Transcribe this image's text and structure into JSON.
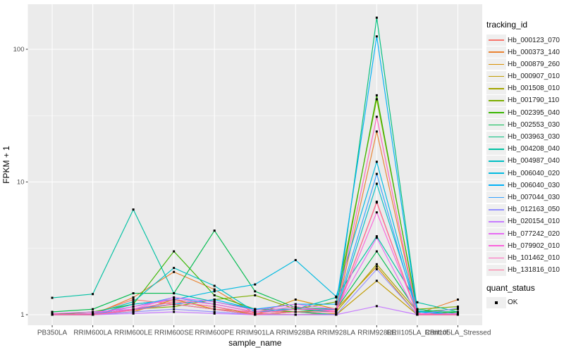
{
  "style": {
    "background": "#FFFFFF",
    "panel_bg": "#EBEBEB",
    "grid": "#FFFFFF",
    "tick": "#333333",
    "tick_label": "#4D4D4D",
    "axis_title": "#000000",
    "point": "#000000",
    "legend_key_bg": "#EFEFEF"
  },
  "chart_data": {
    "type": "line",
    "title": "",
    "xlabel": "sample_name",
    "ylabel": "FPKM + 1",
    "y_scale": "log10",
    "ylim": [
      0.83,
      215
    ],
    "y_ticks": [
      1,
      10,
      100
    ],
    "y_tick_labels": [
      "1",
      "10",
      "100"
    ],
    "y_minor": [
      3.1623,
      31.623
    ],
    "grid": true,
    "legend_position": "right",
    "point_marker": "filled-square",
    "categories": [
      "PB350LA",
      "RRIM600LA",
      "RRIM600LE",
      "RRIM600SE",
      "RRIM600PE",
      "RRIM901LA",
      "RRIM928BA",
      "RRIM928LA",
      "RRIM928LE",
      "RRII105LA_Control",
      "RRII105LA_Stressed"
    ],
    "series": [
      {
        "name": "Hb_000123_070",
        "color": "#F8766D",
        "values": [
          1.0,
          1.02,
          1.3,
          1.2,
          1.1,
          1.05,
          1.05,
          1.05,
          7.1,
          1.0,
          1.0
        ]
      },
      {
        "name": "Hb_000373_140",
        "color": "#EA8331",
        "values": [
          1.0,
          1.0,
          1.35,
          2.1,
          1.55,
          1.02,
          1.0,
          1.02,
          24,
          1.02,
          1.3
        ]
      },
      {
        "name": "Hb_000879_260",
        "color": "#D89000",
        "values": [
          1.0,
          1.0,
          1.05,
          1.3,
          1.1,
          1.0,
          1.3,
          1.1,
          2.3,
          1.0,
          1.05
        ]
      },
      {
        "name": "Hb_000907_010",
        "color": "#C09B00",
        "values": [
          1.02,
          1.0,
          1.1,
          1.25,
          1.15,
          1.0,
          1.05,
          1.0,
          1.8,
          1.0,
          1.0
        ]
      },
      {
        "name": "Hb_001508_010",
        "color": "#A3A500",
        "values": [
          1.0,
          1.0,
          1.2,
          1.3,
          1.2,
          1.05,
          1.1,
          1.05,
          2.4,
          1.05,
          1.0
        ]
      },
      {
        "name": "Hb_001790_110",
        "color": "#7CAE00",
        "values": [
          1.0,
          1.0,
          1.1,
          1.15,
          1.3,
          1.4,
          1.1,
          1.25,
          42,
          1.1,
          1.15
        ]
      },
      {
        "name": "Hb_002395_040",
        "color": "#39B600",
        "values": [
          1.0,
          1.05,
          1.2,
          3.0,
          1.4,
          1.1,
          1.05,
          1.1,
          45,
          1.05,
          1.1
        ]
      },
      {
        "name": "Hb_002553_030",
        "color": "#00BB4E",
        "values": [
          1.05,
          1.1,
          1.45,
          1.45,
          4.3,
          1.5,
          1.13,
          1.1,
          3.0,
          1.05,
          1.05
        ]
      },
      {
        "name": "Hb_003963_030",
        "color": "#00BF7D",
        "values": [
          1.0,
          1.0,
          1.1,
          1.2,
          1.1,
          1.0,
          1.05,
          1.0,
          173,
          1.1,
          1.02
        ]
      },
      {
        "name": "Hb_004208_040",
        "color": "#00C1A3",
        "values": [
          1.34,
          1.43,
          6.2,
          1.45,
          1.25,
          1.1,
          1.1,
          1.35,
          3.9,
          1.24,
          1.05
        ]
      },
      {
        "name": "Hb_004987_040",
        "color": "#00BFC4",
        "values": [
          1.0,
          1.02,
          1.25,
          2.25,
          1.65,
          1.05,
          1.1,
          1.05,
          9.7,
          1.07,
          1.0
        ]
      },
      {
        "name": "Hb_006040_020",
        "color": "#00BAE0",
        "values": [
          1.0,
          1.0,
          1.2,
          1.3,
          1.5,
          1.69,
          2.58,
          1.37,
          14.2,
          1.05,
          1.0
        ]
      },
      {
        "name": "Hb_006040_030",
        "color": "#00B0F6",
        "values": [
          1.0,
          1.0,
          1.1,
          1.2,
          1.3,
          1.1,
          1.2,
          1.2,
          125,
          1.05,
          1.0
        ]
      },
      {
        "name": "Hb_007044_030",
        "color": "#35A2FF",
        "values": [
          1.0,
          1.0,
          1.15,
          1.35,
          1.2,
          1.05,
          1.1,
          1.1,
          11.5,
          1.0,
          1.0
        ]
      },
      {
        "name": "Hb_012163_050",
        "color": "#9590FF",
        "values": [
          1.0,
          1.0,
          1.05,
          1.1,
          1.05,
          1.0,
          1.0,
          1.0,
          2.2,
          1.0,
          1.12
        ]
      },
      {
        "name": "Hb_020154_010",
        "color": "#C77CFF",
        "values": [
          1.0,
          1.0,
          1.02,
          1.05,
          1.02,
          1.0,
          1.0,
          1.0,
          1.16,
          1.0,
          1.0
        ]
      },
      {
        "name": "Hb_077242_020",
        "color": "#E76BF3",
        "values": [
          1.02,
          1.05,
          1.1,
          1.35,
          1.25,
          1.08,
          1.2,
          1.1,
          3.8,
          1.0,
          1.02
        ]
      },
      {
        "name": "Hb_079902_010",
        "color": "#FA62DB",
        "values": [
          1.0,
          1.02,
          1.15,
          1.3,
          1.2,
          1.05,
          1.15,
          1.05,
          5.9,
          1.02,
          1.0
        ]
      },
      {
        "name": "Hb_101462_010",
        "color": "#FF62BC",
        "values": [
          1.0,
          1.0,
          1.1,
          1.25,
          1.15,
          1.02,
          1.1,
          1.08,
          31,
          1.0,
          1.0
        ]
      },
      {
        "name": "Hb_131816_010",
        "color": "#FF6A98",
        "values": [
          1.0,
          1.0,
          1.08,
          1.2,
          1.1,
          1.0,
          1.05,
          1.05,
          7.0,
          1.0,
          1.0
        ]
      }
    ],
    "legend": {
      "title": "tracking_id"
    },
    "legend2": {
      "title": "quant_status",
      "items": [
        {
          "label": "OK",
          "marker": "filled-square",
          "color": "#000000"
        }
      ]
    }
  }
}
